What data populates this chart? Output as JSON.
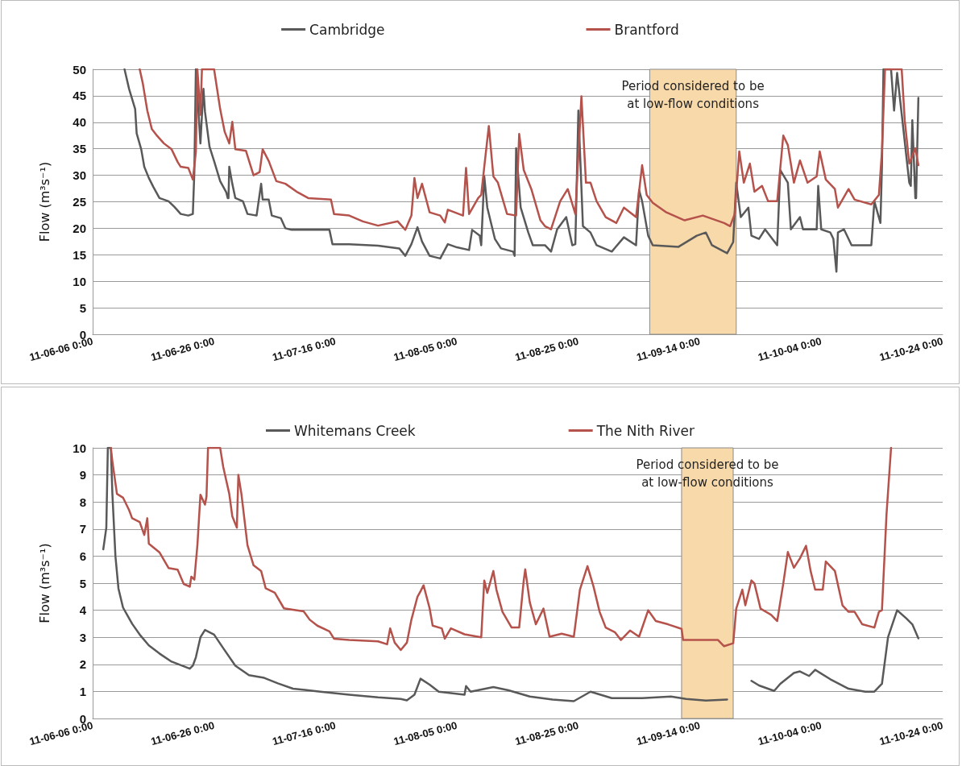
{
  "chart_data": [
    {
      "type": "line",
      "ylabel": "Flow (m³s⁻¹)",
      "legend": "top",
      "grid": "y",
      "marker": "none",
      "xlim": [
        "--06-06",
        "--10-24"
      ],
      "xticks": [
        {
          "value": "--06-06",
          "label": "11-06-06 0:00"
        },
        {
          "value": "--06-26",
          "label": "11-06-26 0:00"
        },
        {
          "value": "--07-16",
          "label": "11-07-16 0:00"
        },
        {
          "value": "--08-05",
          "label": "11-08-05 0:00"
        },
        {
          "value": "--08-25",
          "label": "11-08-25 0:00"
        },
        {
          "value": "--09-14",
          "label": "11-09-14 0:00"
        },
        {
          "value": "--10-04",
          "label": "11-10-04 0:00"
        },
        {
          "value": "--10-24",
          "label": "11-10-24 0:00"
        }
      ],
      "ylim": [
        0,
        50
      ],
      "yticks": [
        0,
        5,
        10,
        15,
        20,
        25,
        30,
        35,
        40,
        45,
        50
      ],
      "bands": [
        {
          "axis": "x",
          "from": "--09-05T18:00",
          "to": "--09-20T00:00",
          "label": "Period considered to be\nat low-flow conditions",
          "color": "#f8d9aa"
        }
      ],
      "series": [
        {
          "name": "Cambridge",
          "color": "#595959",
          "x": [
            "--06-11T06:00",
            "--06-12T00:00",
            "--06-13T00:00",
            "--06-13T06:00",
            "--06-14T00:00",
            "--06-14T12:00",
            "--06-15T06:00",
            "--06-16T00:00",
            "--06-17T00:00",
            "--06-18T12:00",
            "--06-19T12:00",
            "--06-20T12:00",
            "--06-21T18:00",
            "--06-22T12:00",
            "--06-22T18:00",
            "--06-23T00:00",
            "--06-23T18:00",
            "--06-24T00:00",
            "--06-24T06:00",
            "--06-24T12:00",
            "--06-25T06:00",
            "--06-26T00:00",
            "--06-27T00:00",
            "--06-28T00:00",
            "--06-28T06:00",
            "--06-28T09:00",
            "--06-28T12:00",
            "--06-29T00:00",
            "--06-29T12:00",
            "--06-30T18:00",
            "--07-01T12:00",
            "--07-03T00:00",
            "--07-03T18:00",
            "--07-04T00:00",
            "--07-05T00:00",
            "--07-05T12:00",
            "--07-07T00:00",
            "--07-07T18:00",
            "--07-08T18:00",
            "--07-15T00:00",
            "--07-15T12:00",
            "--07-18T06:00",
            "--07-23T00:00",
            "--07-26T12:00",
            "--07-27T12:00",
            "--07-28T12:00",
            "--07-29T12:00",
            "--07-30T06:00",
            "--07-31T12:00",
            "--08-02T06:00",
            "--08-03T12:00",
            "--08-05T00:00",
            "--08-07T00:00",
            "--08-07T12:00",
            "--08-08T18:00",
            "--08-09T00:00",
            "--08-09T12:00",
            "--08-10T00:00",
            "--08-11T06:00",
            "--08-12T06:00",
            "--08-14T06:00",
            "--08-14T12:00",
            "--08-14T18:00",
            "--08-15T12:00",
            "--08-16T18:00",
            "--08-17T12:00",
            "--08-19T12:00",
            "--08-20T12:00",
            "--08-21T12:00",
            "--08-23T00:00",
            "--08-24T00:00",
            "--08-24T12:00",
            "--08-25T00:00",
            "--08-25T18:00",
            "--08-27T00:00",
            "--08-28T00:00",
            "--08-30T12:00",
            "--09-01T12:00",
            "--09-03T12:00",
            "--09-04T00:00",
            "--09-04T12:00",
            "--09-05T12:00",
            "--09-06T06:00",
            "--09-10T12:00",
            "--09-13T12:00",
            "--09-15T00:00",
            "--09-16T00:00",
            "--09-18T12:00",
            "--09-19T12:00",
            "--09-20T00:00",
            "--09-20T18:00",
            "--09-22T00:00",
            "--09-22T12:00",
            "--09-23T18:00",
            "--09-24T18:00",
            "--09-26T18:00",
            "--09-27T06:00",
            "--09-28T12:00",
            "--09-29T00:00",
            "--09-30T12:00",
            "--10-01T00:00",
            "--10-03T06:00",
            "--10-03T12:00",
            "--10-04T00:00",
            "--10-05T12:00",
            "--10-06T00:00",
            "--10-06T12:00",
            "--10-06T18:00",
            "--10-07T18:00",
            "--10-09T00:00",
            "--10-12T06:00",
            "--10-12T18:00",
            "--10-13T18:00",
            "--10-14T00:00",
            "--10-14T06:00",
            "--10-15T12:00",
            "--10-16T00:00",
            "--10-16T12:00",
            "--10-17T06:00",
            "--10-18T12:00",
            "--10-18T18:00",
            "--10-19T00:00",
            "--10-19T12:00",
            "--10-19T15:00",
            "--10-20T00:00"
          ],
          "values": [
            50,
            46.3,
            42.5,
            37.9,
            34.9,
            31.6,
            29.5,
            27.8,
            25.7,
            25.1,
            24,
            22.7,
            22.4,
            22.7,
            30.6,
            50,
            36,
            41.4,
            46.3,
            42,
            35.4,
            32.7,
            28.9,
            26.8,
            25.7,
            25.7,
            31.6,
            28.4,
            25.7,
            25.1,
            22.7,
            22.4,
            28.4,
            25.4,
            25.4,
            22.4,
            21.9,
            20,
            19.7,
            19.7,
            17,
            17,
            16.7,
            16.2,
            14.8,
            17,
            20.2,
            17.5,
            14.8,
            14.3,
            17,
            16.4,
            15.9,
            19.7,
            18.6,
            16.8,
            29.8,
            23.9,
            18,
            16.2,
            15.6,
            14.8,
            35.1,
            23.9,
            19.2,
            16.8,
            16.8,
            15.6,
            19.8,
            22.1,
            16.8,
            17,
            42.2,
            20.4,
            19.2,
            16.8,
            15.6,
            18.3,
            16.8,
            27.2,
            25.1,
            18.6,
            16.8,
            16.5,
            18.6,
            19.2,
            16.8,
            15.3,
            17.4,
            28.6,
            22.1,
            23.9,
            18.6,
            18,
            19.8,
            16.8,
            31,
            28.6,
            19.8,
            22.1,
            19.8,
            19.8,
            28,
            19.8,
            19.2,
            18,
            11.8,
            19.2,
            19.8,
            16.8,
            16.8,
            25.1,
            21,
            31.6,
            50,
            50,
            42.2,
            49.3,
            41.6,
            28.6,
            28,
            40.4,
            25.7,
            25.7,
            44.6
          ]
        },
        {
          "name": "Brantford",
          "color": "#b5524b",
          "x": [
            "--06-13T18:00",
            "--06-14T06:00",
            "--06-15T00:00",
            "--06-15T18:00",
            "--06-16T12:00",
            "--06-17T18:00",
            "--06-19T00:00",
            "--06-20T00:00",
            "--06-20T12:00",
            "--06-21T18:00",
            "--06-22T12:00",
            "--06-23T00:00",
            "--06-23T06:00",
            "--06-23T18:00",
            "--06-24T00:00",
            "--06-26T00:00",
            "--06-27T00:00",
            "--06-27T18:00",
            "--06-28T12:00",
            "--06-29T00:00",
            "--06-29T12:00",
            "--07-01T06:00",
            "--07-02T12:00",
            "--07-03T12:00",
            "--07-04T00:00",
            "--07-05T00:00",
            "--07-06T06:00",
            "--07-07T18:00",
            "--07-09T18:00",
            "--07-11T12:00",
            "--07-15T06:00",
            "--07-15T18:00",
            "--07-18T06:00",
            "--07-20T12:00",
            "--07-23T00:00",
            "--07-26T06:00",
            "--07-27T12:00",
            "--07-28T12:00",
            "--07-29T00:00",
            "--07-29T12:00",
            "--07-30T06:00",
            "--07-31T12:00",
            "--08-02T06:00",
            "--08-03T00:00",
            "--08-03T12:00",
            "--08-06T00:00",
            "--08-06T12:00",
            "--08-07T00:00",
            "--08-08T12:00",
            "--08-09T00:00",
            "--08-09T12:00",
            "--08-10T06:00",
            "--08-11T00:00",
            "--08-11T18:00",
            "--08-13T06:00",
            "--08-14T18:00",
            "--08-15T06:00",
            "--08-16T00:00",
            "--08-17T06:00",
            "--08-18T18:00",
            "--08-19T12:00",
            "--08-20T12:00",
            "--08-22T00:00",
            "--08-23T06:00",
            "--08-24T12:00",
            "--08-25T12:00",
            "--08-26T06:00",
            "--08-27T00:00",
            "--08-28T00:00",
            "--08-29T12:00",
            "--08-31T06:00",
            "--09-01T12:00",
            "--09-03T12:00",
            "--09-04T12:00",
            "--09-05T06:00",
            "--09-06T06:00",
            "--09-08T12:00",
            "--09-11T12:00",
            "--09-14T12:00",
            "--09-18T00:00",
            "--09-19T00:00",
            "--09-19T18:00",
            "--09-20T12:00",
            "--09-21T06:00",
            "--09-22T06:00",
            "--09-23T00:00",
            "--09-24T06:00",
            "--09-25T06:00",
            "--09-26T18:00",
            "--09-27T18:00",
            "--09-28T12:00",
            "--09-29T12:00",
            "--09-30T12:00",
            "--10-01T18:00",
            "--10-03T06:00",
            "--10-03T18:00",
            "--10-04T18:00",
            "--10-06T06:00",
            "--10-06T18:00",
            "--10-08T12:00",
            "--10-09T12:00",
            "--10-12T06:00",
            "--10-13T12:00",
            "--10-14T00:00",
            "--10-14T12:00",
            "--10-17T06:00",
            "--10-17T18:00",
            "--10-18T12:00",
            "--10-19T12:00",
            "--10-20T00:00"
          ],
          "values": [
            50,
            47.4,
            42.2,
            38.7,
            37.6,
            36,
            34.9,
            32.5,
            31.6,
            31.4,
            29.2,
            34.4,
            50,
            41.4,
            50,
            50,
            42.5,
            38.2,
            36,
            40.1,
            34.9,
            34.6,
            30,
            30.6,
            34.9,
            32.7,
            28.9,
            28.4,
            26.8,
            25.7,
            25.4,
            22.7,
            22.4,
            21.3,
            20.5,
            21.3,
            19.7,
            22.4,
            29.5,
            25.7,
            28.4,
            23,
            22.4,
            21.1,
            23.5,
            22.4,
            31.4,
            22.7,
            25.7,
            26.3,
            31.6,
            39.3,
            29.8,
            28.6,
            22.7,
            22.4,
            37.8,
            31,
            27.4,
            21.5,
            20.4,
            19.8,
            25.1,
            27.4,
            22.7,
            44.9,
            28.6,
            28.6,
            25.1,
            22.1,
            21,
            23.9,
            22.1,
            31.9,
            26.3,
            24.8,
            23,
            21.5,
            22.4,
            21,
            20.4,
            22.7,
            34.5,
            28.6,
            32.2,
            26.9,
            28,
            25.1,
            25.1,
            37.5,
            35.7,
            28.6,
            32.8,
            28.6,
            29.8,
            34.5,
            29.2,
            27.4,
            23.9,
            27.4,
            25.4,
            24.5,
            26.3,
            34.5,
            50,
            50,
            40.4,
            32.2,
            35.1,
            31.9
          ]
        }
      ]
    },
    {
      "type": "line",
      "ylabel": "Flow (m³s⁻¹)",
      "legend": "top",
      "grid": "y",
      "marker": "none",
      "xlim": [
        "--06-06",
        "--10-24"
      ],
      "xticks": [
        {
          "value": "--06-06",
          "label": "11-06-06 0:00"
        },
        {
          "value": "--06-26",
          "label": "11-06-26 0:00"
        },
        {
          "value": "--07-16",
          "label": "11-07-16 0:00"
        },
        {
          "value": "--08-05",
          "label": "11-08-05 0:00"
        },
        {
          "value": "--08-25",
          "label": "11-08-25 0:00"
        },
        {
          "value": "--09-14",
          "label": "11-09-14 0:00"
        },
        {
          "value": "--10-04",
          "label": "11-10-04 0:00"
        },
        {
          "value": "--10-24",
          "label": "11-10-24 0:00"
        }
      ],
      "ylim": [
        0,
        10
      ],
      "yticks": [
        0,
        1,
        2,
        3,
        4,
        5,
        6,
        7,
        8,
        9,
        10
      ],
      "bands": [
        {
          "axis": "x",
          "from": "--09-11T00:00",
          "to": "--09-19T12:00",
          "label": "Period considered to be\nat low-flow conditions",
          "color": "#f8d9aa"
        }
      ],
      "series": [
        {
          "name": "Whitemans Creek",
          "color": "#595959",
          "x": [
            "--06-07T18:00",
            "--06-08T06:00",
            "--06-08T12:00",
            "--06-09T00:00",
            "--06-09T06:00",
            "--06-09T18:00",
            "--06-10T06:00",
            "--06-11T00:00",
            "--06-12T12:00",
            "--06-13T18:00",
            "--06-15T06:00",
            "--06-17T00:00",
            "--06-19T00:00",
            "--06-22T00:00",
            "--06-22T12:00",
            "--06-23T00:00",
            "--06-23T18:00",
            "--06-24T12:00",
            "--06-26T00:00",
            "--06-27T12:00",
            "--06-29T12:00",
            "--07-01T18:00",
            "--07-04T06:00",
            "--07-06T12:00",
            "--07-09T00:00",
            "--07-11T06:00",
            "--07-13T12:00",
            "--07-18T06:00",
            "--07-23T00:00",
            "--07-26T18:00",
            "--07-27T18:00",
            "--07-29T00:00",
            "--07-30T00:00",
            "--07-31T12:00",
            "--08-02T00:00",
            "--08-04T00:00",
            "--08-06T06:00",
            "--08-06T12:00",
            "--08-07T06:00",
            "--08-11T00:00",
            "--08-13T12:00",
            "--08-17T00:00",
            "--08-20T18:00",
            "--08-24T06:00",
            "--08-27T00:00",
            "--08-30T12:00",
            "--09-04T12:00",
            "--09-09T06:00",
            "--09-11T18:00",
            "--09-15T00:00",
            "--09-18T12:00",
            "--09-20T00:00",
            "--09-22T12:00",
            "--09-23T18:00",
            "--09-26T06:00",
            "--09-27T06:00",
            "--09-29T12:00",
            "--09-30T12:00",
            "--10-02T00:00",
            "--10-03T00:00",
            "--10-05T12:00",
            "--10-08T12:00",
            "--10-11T06:00",
            "--10-12T18:00",
            "--10-14T00:00",
            "--10-15T00:00",
            "--10-16T12:00",
            "--10-18T00:00",
            "--10-19T00:00",
            "--10-20T00:00"
          ],
          "values": [
            6.25,
            7.05,
            10,
            10,
            8.3,
            6,
            4.8,
            4.1,
            3.5,
            3.1,
            2.7,
            2.4,
            2.1,
            1.84,
            1.95,
            2.26,
            3,
            3.27,
            3.1,
            2.6,
            1.95,
            1.6,
            1.5,
            1.3,
            1.1,
            1.05,
            0.99,
            0.88,
            0.78,
            0.72,
            0.67,
            0.88,
            1.47,
            1.25,
            0.99,
            0.94,
            0.88,
            1.2,
            0.99,
            1.16,
            1.04,
            0.81,
            0.7,
            0.64,
            0.99,
            0.75,
            0.75,
            0.81,
            0.72,
            0.66,
            0.7,
            null,
            1.39,
            1.22,
            1.02,
            1.28,
            1.68,
            1.74,
            1.57,
            1.8,
            1.45,
            1.1,
            0.99,
            0.99,
            1.28,
            3,
            4,
            3.7,
            3.48,
            2.96
          ]
        },
        {
          "name": "The Nith River",
          "color": "#b5524b",
          "x": [
            "--06-09T00:00",
            "--06-09T06:00",
            "--06-10T00:00",
            "--06-11T00:00",
            "--06-12T00:00",
            "--06-12T12:00",
            "--06-13T18:00",
            "--06-14T12:00",
            "--06-15T00:00",
            "--06-15T06:00",
            "--06-17T00:00",
            "--06-18T12:00",
            "--06-20T00:00",
            "--06-21T00:00",
            "--06-22T00:00",
            "--06-22T06:00",
            "--06-22T18:00",
            "--06-23T06:00",
            "--06-23T18:00",
            "--06-24T12:00",
            "--06-24T18:00",
            "--06-25T00:00",
            "--06-27T00:00",
            "--06-27T12:00",
            "--06-28T12:00",
            "--06-29T00:00",
            "--06-29T18:00",
            "--06-30T00:00",
            "--06-30T12:00",
            "--07-01T12:00",
            "--07-02T12:00",
            "--07-03T18:00",
            "--07-04T12:00",
            "--07-06T00:00",
            "--07-07T12:00",
            "--07-09T00:00",
            "--07-10T18:00",
            "--07-11T18:00",
            "--07-13T00:00",
            "--07-15T00:00",
            "--07-15T18:00",
            "--07-18T06:00",
            "--07-23T00:00",
            "--07-24T12:00",
            "--07-25T00:00",
            "--07-25T18:00",
            "--07-26T18:00",
            "--07-27T18:00",
            "--07-28T12:00",
            "--07-29T12:00",
            "--07-30T00:00",
            "--07-30T12:00",
            "--07-31T12:00",
            "--08-01T00:00",
            "--08-02T12:00",
            "--08-03T00:00",
            "--08-04T00:00",
            "--08-06T06:00",
            "--08-09T00:00",
            "--08-09T12:00",
            "--08-10T00:00",
            "--08-11T00:00",
            "--08-11T12:00",
            "--08-12T12:00",
            "--08-14T00:00",
            "--08-15T06:00",
            "--08-16T00:00",
            "--08-16T06:00",
            "--08-17T00:00",
            "--08-18T00:00",
            "--08-19T06:00",
            "--08-20T06:00",
            "--08-22T06:00",
            "--08-24T06:00",
            "--08-25T06:00",
            "--08-26T12:00",
            "--08-27T12:00",
            "--08-28T12:00",
            "--08-29T12:00",
            "--08-31T00:00",
            "--09-01T00:00",
            "--09-02T12:00",
            "--09-04T00:00",
            "--09-05T12:00",
            "--09-06T18:00",
            "--09-08T18:00",
            "--09-11T00:00",
            "--09-11T06:00",
            "--09-17T00:00",
            "--09-18T00:00",
            "--09-19T12:00",
            "--09-20T00:00",
            "--09-21T00:00",
            "--09-21T12:00",
            "--09-22T12:00",
            "--09-23T00:00",
            "--09-24T00:00",
            "--09-25T18:00",
            "--09-26T18:00",
            "--09-27T18:00",
            "--09-28T12:00",
            "--09-29T12:00",
            "--09-30T12:00",
            "--10-01T12:00",
            "--10-02T06:00",
            "--10-03T00:00",
            "--10-04T06:00",
            "--10-04T18:00",
            "--10-06T06:00",
            "--10-07T12:00",
            "--10-08T12:00",
            "--10-09T12:00",
            "--10-10T18:00",
            "--10-12T18:00",
            "--10-13T12:00",
            "--10-14T00:00",
            "--10-14T18:00",
            "--10-15T12:00"
          ],
          "values": [
            10,
            9.5,
            8.3,
            8.16,
            7.7,
            7.4,
            7.26,
            6.78,
            7.4,
            6.46,
            6.14,
            5.56,
            5.5,
            4.97,
            4.87,
            5.24,
            5.13,
            6.4,
            8.27,
            7.9,
            8.2,
            10,
            10,
            9.3,
            8.3,
            7.47,
            7.05,
            9,
            8.3,
            6.4,
            5.66,
            5.45,
            4.81,
            4.65,
            4.07,
            4.02,
            3.96,
            3.65,
            3.43,
            3.22,
            2.95,
            2.9,
            2.85,
            2.74,
            3.33,
            2.8,
            2.53,
            2.8,
            3.65,
            4.5,
            4.7,
            4.92,
            4.07,
            3.43,
            3.33,
            2.95,
            3.33,
            3.11,
            3,
            5.1,
            4.64,
            5.45,
            4.76,
            3.94,
            3.36,
            3.36,
            5.1,
            5.51,
            4.29,
            3.48,
            4.06,
            3.02,
            3.13,
            3.02,
            4.76,
            5.63,
            4.87,
            3.94,
            3.36,
            3.19,
            2.9,
            3.25,
            3.02,
            4,
            3.6,
            3.48,
            3.31,
            2.9,
            2.9,
            2.67,
            2.78,
            4.06,
            4.76,
            4.18,
            5.1,
            4.99,
            4.06,
            3.83,
            3.6,
            4.99,
            6.15,
            5.57,
            5.92,
            6.38,
            5.45,
            4.76,
            4.76,
            5.8,
            5.45,
            4.18,
            3.94,
            3.94,
            3.48,
            3.36,
            3.94,
            4,
            7.54,
            10
          ]
        }
      ]
    }
  ]
}
